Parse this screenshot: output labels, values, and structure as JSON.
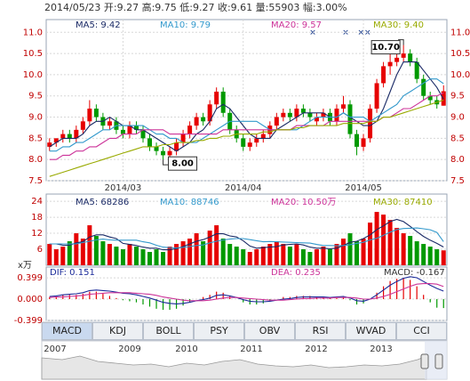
{
  "chart_data": {
    "type": "candlestick",
    "title": "2014/05/23 开:9.27 高:9.75 低:9.27 收:9.61 量:55903 幅:3.00%",
    "up_color": "#e60000",
    "down_color": "#009900",
    "grid": true,
    "ylim": [
      7.5,
      11.3
    ],
    "yticks": [
      {
        "value": 11,
        "label": "11.0"
      },
      10.5,
      {
        "value": 10,
        "label": "10.0"
      },
      9.5,
      {
        "value": 9,
        "label": "9.0"
      },
      8.5,
      {
        "value": 8,
        "label": "8.0"
      },
      7.5
    ],
    "xticks": [
      {
        "value": 11,
        "label": "2014/03"
      },
      {
        "value": 29,
        "label": "2014/04"
      },
      {
        "value": 47,
        "label": "2014/05"
      }
    ],
    "open": [
      8.3,
      8.4,
      8.5,
      8.6,
      8.5,
      8.7,
      8.9,
      9.2,
      9.0,
      8.8,
      8.9,
      8.7,
      8.6,
      8.8,
      8.7,
      8.5,
      8.3,
      8.2,
      8.1,
      8.2,
      8.4,
      8.6,
      8.8,
      9.0,
      8.9,
      9.3,
      9.6,
      9.1,
      8.7,
      8.5,
      8.3,
      8.4,
      8.5,
      8.6,
      8.8,
      9.0,
      9.1,
      9.0,
      9.2,
      9.1,
      8.9,
      9.0,
      9.1,
      8.9,
      9.2,
      9.3,
      8.6,
      8.3,
      8.5,
      9.2,
      9.8,
      10.2,
      10.3,
      10.4,
      10.5,
      10.3,
      9.9,
      9.5,
      9.4,
      9.27
    ],
    "high": [
      8.5,
      8.5,
      8.7,
      8.7,
      8.8,
      9.0,
      9.4,
      9.3,
      9.1,
      9.0,
      9.0,
      8.8,
      8.9,
      8.9,
      8.8,
      8.6,
      8.4,
      8.3,
      8.3,
      8.5,
      8.7,
      8.9,
      9.1,
      9.1,
      9.4,
      9.7,
      9.7,
      9.2,
      8.8,
      8.6,
      8.5,
      8.6,
      8.7,
      8.9,
      9.1,
      9.2,
      9.2,
      9.3,
      9.3,
      9.2,
      9.1,
      9.2,
      9.2,
      9.3,
      9.5,
      9.4,
      8.7,
      8.6,
      9.3,
      9.9,
      10.3,
      10.5,
      10.6,
      10.7,
      10.6,
      10.4,
      10.0,
      9.6,
      9.5,
      9.75
    ],
    "low": [
      8.2,
      8.3,
      8.4,
      8.4,
      8.4,
      8.6,
      8.8,
      8.9,
      8.7,
      8.7,
      8.6,
      8.5,
      8.5,
      8.6,
      8.4,
      8.2,
      8.1,
      8.0,
      8.05,
      8.1,
      8.3,
      8.5,
      8.7,
      8.8,
      8.8,
      9.2,
      9.0,
      8.6,
      8.4,
      8.2,
      8.2,
      8.3,
      8.4,
      8.5,
      8.7,
      8.9,
      8.9,
      8.9,
      9.0,
      8.9,
      8.8,
      8.9,
      8.8,
      8.8,
      9.1,
      8.5,
      8.1,
      8.2,
      8.4,
      9.1,
      9.7,
      10.0,
      10.2,
      10.3,
      10.2,
      9.8,
      9.4,
      9.3,
      9.2,
      9.27
    ],
    "close": [
      8.4,
      8.5,
      8.6,
      8.5,
      8.7,
      8.9,
      9.2,
      9.0,
      8.8,
      8.9,
      8.7,
      8.6,
      8.8,
      8.7,
      8.5,
      8.3,
      8.2,
      8.1,
      8.2,
      8.4,
      8.6,
      8.8,
      9.0,
      8.9,
      9.3,
      9.6,
      9.1,
      8.7,
      8.5,
      8.3,
      8.4,
      8.5,
      8.6,
      8.8,
      9.0,
      9.1,
      9.0,
      9.2,
      9.1,
      9.0,
      9.0,
      9.1,
      8.9,
      9.2,
      9.3,
      8.6,
      8.3,
      8.5,
      9.2,
      9.8,
      10.2,
      10.3,
      10.4,
      10.5,
      10.3,
      9.9,
      9.5,
      9.4,
      9.3,
      9.61
    ],
    "annotations": [
      {
        "value": 10.7,
        "label": "10.70"
      },
      {
        "value": 8,
        "label": "8.00"
      }
    ],
    "ma": [
      {
        "name": "MA5: 9.42",
        "color": "#1a2a66",
        "values": [
          8.3,
          8.4,
          8.5,
          8.5,
          8.5,
          8.6,
          8.8,
          8.9,
          8.9,
          9.0,
          8.9,
          8.8,
          8.8,
          8.7,
          8.7,
          8.6,
          8.5,
          8.4,
          8.3,
          8.2,
          8.3,
          8.4,
          8.6,
          8.7,
          8.9,
          9.2,
          9.3,
          9.2,
          9.0,
          8.8,
          8.6,
          8.5,
          8.5,
          8.5,
          8.7,
          8.8,
          8.9,
          9.0,
          9.1,
          9.1,
          9.1,
          9.1,
          9.0,
          9.0,
          9.1,
          9.0,
          8.9,
          8.8,
          8.8,
          8.9,
          9.2,
          9.6,
          10.0,
          10.3,
          10.3,
          10.3,
          10.1,
          9.9,
          9.7,
          9.42
        ]
      },
      {
        "name": "MA10: 9.79",
        "color": "#3399cc",
        "values": [
          8.2,
          8.2,
          8.3,
          8.3,
          8.4,
          8.4,
          8.5,
          8.6,
          8.7,
          8.7,
          8.8,
          8.8,
          8.8,
          8.8,
          8.8,
          8.7,
          8.6,
          8.6,
          8.5,
          8.5,
          8.4,
          8.4,
          8.4,
          8.5,
          8.6,
          8.7,
          8.8,
          8.9,
          8.9,
          8.9,
          8.9,
          8.9,
          8.8,
          8.7,
          8.7,
          8.7,
          8.7,
          8.7,
          8.8,
          8.9,
          9.0,
          9.0,
          9.0,
          9.0,
          9.1,
          9.0,
          9.0,
          9.0,
          8.9,
          9.0,
          9.1,
          9.2,
          9.3,
          9.5,
          9.6,
          9.7,
          9.8,
          9.9,
          9.9,
          9.79
        ]
      },
      {
        "name": "MA20: 9.57",
        "color": "#cc3399",
        "values": [
          8.0,
          8.0,
          8.1,
          8.1,
          8.2,
          8.2,
          8.3,
          8.3,
          8.4,
          8.5,
          8.5,
          8.6,
          8.6,
          8.6,
          8.7,
          8.7,
          8.7,
          8.7,
          8.6,
          8.6,
          8.6,
          8.6,
          8.6,
          8.6,
          8.6,
          8.6,
          8.7,
          8.7,
          8.7,
          8.7,
          8.7,
          8.7,
          8.7,
          8.7,
          8.7,
          8.7,
          8.7,
          8.8,
          8.8,
          8.8,
          8.8,
          8.8,
          8.9,
          8.9,
          8.9,
          8.9,
          8.9,
          8.9,
          8.9,
          8.9,
          9.0,
          9.0,
          9.1,
          9.2,
          9.2,
          9.3,
          9.4,
          9.5,
          9.5,
          9.57
        ]
      },
      {
        "name": "MA30: 9.40",
        "color": "#99aa00",
        "values": [
          7.6,
          7.65,
          7.7,
          7.75,
          7.8,
          7.85,
          7.9,
          7.95,
          8.0,
          8.05,
          8.1,
          8.15,
          8.2,
          8.25,
          8.3,
          8.3,
          8.3,
          8.35,
          8.35,
          8.4,
          8.4,
          8.4,
          8.45,
          8.45,
          8.5,
          8.5,
          8.55,
          8.55,
          8.6,
          8.6,
          8.6,
          8.6,
          8.65,
          8.65,
          8.7,
          8.7,
          8.7,
          8.75,
          8.75,
          8.8,
          8.8,
          8.8,
          8.8,
          8.8,
          8.85,
          8.85,
          8.85,
          8.85,
          8.9,
          8.9,
          9.0,
          9.0,
          9.05,
          9.1,
          9.15,
          9.2,
          9.25,
          9.3,
          9.35,
          9.4
        ]
      }
    ],
    "volume": {
      "unit": "x万",
      "ylim": [
        0,
        26.7
      ],
      "yticks": [
        24,
        18,
        12,
        6
      ],
      "values": [
        8,
        6,
        7,
        9,
        12,
        10,
        15,
        11,
        9,
        8,
        7,
        6,
        8,
        7,
        6,
        5,
        6,
        5,
        7,
        8,
        9,
        10,
        12,
        9,
        13,
        15,
        10,
        8,
        7,
        6,
        5,
        6,
        7,
        8,
        9,
        8,
        7,
        8,
        6,
        5,
        6,
        7,
        6,
        8,
        10,
        12,
        9,
        10,
        16,
        20,
        19,
        17,
        14,
        12,
        11,
        9,
        8,
        7,
        6,
        5.59
      ],
      "series": [
        {
          "name": "MA5: 68286",
          "color": "#1a2a66",
          "values": [
            8,
            8,
            7.5,
            7.5,
            8.4,
            8.8,
            10.6,
            11.4,
            11.4,
            10.6,
            10,
            8.2,
            7.8,
            7.4,
            6.8,
            6.4,
            6.4,
            5.8,
            5.8,
            6.2,
            7,
            8,
            9,
            9.6,
            10.6,
            11.8,
            11.8,
            11,
            10.6,
            9.2,
            7.2,
            6.4,
            6.6,
            6.8,
            7,
            7.6,
            7.8,
            8,
            7.6,
            6.8,
            6.4,
            6.4,
            6.2,
            6.4,
            7.4,
            8.6,
            9,
            10,
            11.4,
            13.4,
            14.8,
            16.4,
            17.2,
            16.4,
            14.6,
            12.6,
            10.8,
            9.4,
            8.2,
            6.83
          ]
        },
        {
          "name": "MA10: 88746",
          "color": "#3399cc",
          "values": [
            8,
            8,
            8,
            8,
            8,
            8.5,
            9,
            9.5,
            9.8,
            9.5,
            9.4,
            9.4,
            9.4,
            9.4,
            8.8,
            8.4,
            7.5,
            6.8,
            6.6,
            6.5,
            6.7,
            7,
            7.4,
            7.6,
            8.4,
            9,
            9.5,
            9.8,
            10,
            10,
            9.6,
            9.2,
            8.8,
            8.9,
            8.8,
            8.7,
            8.6,
            8.5,
            8.4,
            8.3,
            7.8,
            7.4,
            7.4,
            7.3,
            7.4,
            7.7,
            8.2,
            8.6,
            9.5,
            10.1,
            11.2,
            12.4,
            13.4,
            13.8,
            13.9,
            14,
            13.7,
            13.3,
            12.3,
            8.87
          ]
        },
        {
          "name": "MA20: 10.50万",
          "color": "#cc3399"
        },
        {
          "name": "MA30: 87410",
          "color": "#99aa00"
        }
      ]
    },
    "macd": {
      "ylim": [
        -0.399,
        0.6
      ],
      "yticks": [
        0.399,
        {
          "value": 0,
          "label": "0.000"
        },
        -0.399
      ],
      "dif": {
        "name": "DIF: 0.151",
        "color": "#1a2a99",
        "values": [
          0.05,
          0.06,
          0.08,
          0.09,
          0.1,
          0.12,
          0.16,
          0.17,
          0.16,
          0.15,
          0.13,
          0.11,
          0.1,
          0.08,
          0.05,
          0.02,
          -0.02,
          -0.06,
          -0.08,
          -0.09,
          -0.08,
          -0.06,
          -0.03,
          -0.01,
          0.02,
          0.07,
          0.08,
          0.06,
          0.03,
          -0.01,
          -0.04,
          -0.05,
          -0.05,
          -0.04,
          -0.02,
          0,
          0.01,
          0.03,
          0.04,
          0.04,
          0.04,
          0.04,
          0.03,
          0.04,
          0.05,
          0.02,
          -0.03,
          -0.04,
          0,
          0.08,
          0.17,
          0.26,
          0.33,
          0.39,
          0.42,
          0.4,
          0.33,
          0.26,
          0.2,
          0.151
        ]
      },
      "dea": {
        "name": "DEA: 0.235",
        "color": "#cc3399",
        "values": [
          0.03,
          0.04,
          0.04,
          0.05,
          0.06,
          0.07,
          0.09,
          0.1,
          0.11,
          0.12,
          0.12,
          0.12,
          0.12,
          0.11,
          0.1,
          0.09,
          0.07,
          0.04,
          0.02,
          0,
          -0.02,
          -0.03,
          -0.03,
          -0.03,
          -0.02,
          0,
          0.02,
          0.03,
          0.03,
          0.02,
          0.01,
          0,
          -0.01,
          -0.02,
          -0.02,
          -0.02,
          -0.01,
          0,
          0.01,
          0.01,
          0.02,
          0.02,
          0.02,
          0.03,
          0.03,
          0.03,
          0.02,
          0,
          0,
          0.02,
          0.05,
          0.09,
          0.14,
          0.19,
          0.24,
          0.28,
          0.29,
          0.29,
          0.28,
          0.235
        ]
      },
      "hist": {
        "name": "MACD: -0.167",
        "values": [
          0.04,
          0.04,
          0.08,
          0.08,
          0.08,
          0.1,
          0.14,
          0.14,
          0.1,
          0.06,
          0.02,
          -0.02,
          -0.04,
          -0.06,
          -0.1,
          -0.14,
          -0.18,
          -0.2,
          -0.2,
          -0.18,
          -0.12,
          -0.06,
          0,
          0.04,
          0.08,
          0.14,
          0.12,
          0.06,
          0,
          -0.06,
          -0.1,
          -0.1,
          -0.08,
          -0.04,
          0,
          0.04,
          0.04,
          0.06,
          0.06,
          0.06,
          0.04,
          0.04,
          0.02,
          0.02,
          0.04,
          -0.02,
          -0.1,
          -0.08,
          0,
          0.12,
          0.24,
          0.34,
          0.38,
          0.4,
          0.36,
          0.24,
          0.08,
          -0.06,
          -0.16,
          -0.167
        ]
      }
    },
    "tabs": [
      "MACD",
      "KDJ",
      "BOLL",
      "PSY",
      "OBV",
      "RSI",
      "WVAD",
      "CCI"
    ],
    "overview_years": [
      "2007",
      "2009",
      "2010",
      "2011",
      "2012",
      "2013"
    ]
  }
}
